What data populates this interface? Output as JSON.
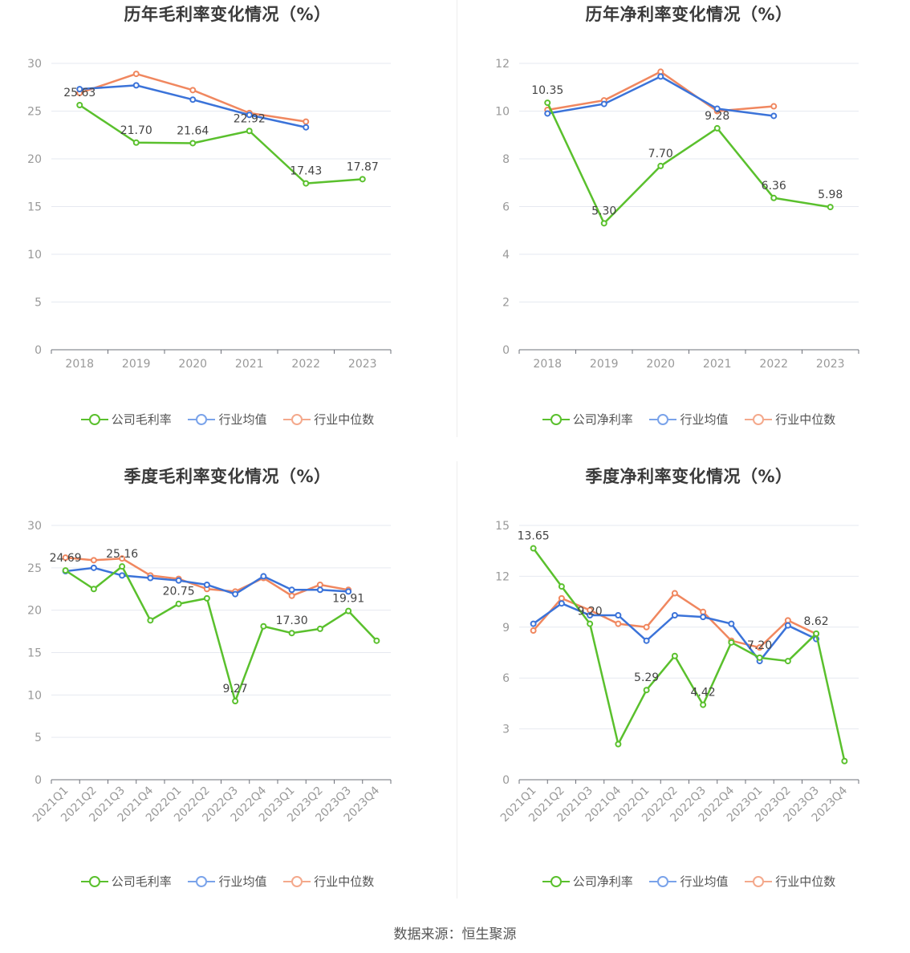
{
  "source": "数据来源：恒生聚源",
  "colors": {
    "company": "#5ac02d",
    "avg": "#3b73d9",
    "median": "#f0875f"
  },
  "charts": [
    {
      "id": "annual-gross",
      "title": "历年毛利率变化情况（%）",
      "legend": [
        "公司毛利率",
        "行业均值",
        "行业中位数"
      ]
    },
    {
      "id": "annual-net",
      "title": "历年净利率变化情况（%）",
      "legend": [
        "公司净利率",
        "行业均值",
        "行业中位数"
      ]
    },
    {
      "id": "quarter-gross",
      "title": "季度毛利率变化情况（%）",
      "legend": [
        "公司毛利率",
        "行业均值",
        "行业中位数"
      ]
    },
    {
      "id": "quarter-net",
      "title": "季度净利率变化情况（%）",
      "legend": [
        "公司净利率",
        "行业均值",
        "行业中位数"
      ]
    }
  ],
  "chart_data": [
    {
      "type": "line",
      "title": "历年毛利率变化情况（%）",
      "categories": [
        "2018",
        "2019",
        "2020",
        "2021",
        "2022",
        "2023"
      ],
      "ylim": [
        0,
        30
      ],
      "yticks": [
        0,
        5,
        10,
        15,
        20,
        25,
        30
      ],
      "grid": true,
      "legend_position": "bottom",
      "series": [
        {
          "name": "公司毛利率",
          "values": [
            25.63,
            21.7,
            21.64,
            22.92,
            17.43,
            17.87
          ],
          "labels": [
            "25.63",
            "21.70",
            "21.64",
            "22.92",
            "17.43",
            "17.87"
          ]
        },
        {
          "name": "行业均值",
          "values": [
            27.3,
            27.7,
            26.2,
            24.6,
            23.3,
            null
          ]
        },
        {
          "name": "行业中位数",
          "values": [
            26.9,
            28.9,
            27.2,
            24.8,
            23.9,
            null
          ]
        }
      ]
    },
    {
      "type": "line",
      "title": "历年净利率变化情况（%）",
      "categories": [
        "2018",
        "2019",
        "2020",
        "2021",
        "2022",
        "2023"
      ],
      "ylim": [
        0,
        12
      ],
      "yticks": [
        0,
        2,
        4,
        6,
        8,
        10,
        12
      ],
      "grid": true,
      "legend_position": "bottom",
      "series": [
        {
          "name": "公司净利率",
          "values": [
            10.35,
            5.3,
            7.7,
            9.28,
            6.36,
            5.98
          ],
          "labels": [
            "10.35",
            "5.30",
            "7.70",
            "9.28",
            "6.36",
            "5.98"
          ]
        },
        {
          "name": "行业均值",
          "values": [
            9.9,
            10.3,
            11.45,
            10.1,
            9.8,
            null
          ]
        },
        {
          "name": "行业中位数",
          "values": [
            10.05,
            10.45,
            11.65,
            10.0,
            10.2,
            null
          ]
        }
      ]
    },
    {
      "type": "line",
      "title": "季度毛利率变化情况（%）",
      "categories": [
        "2021Q1",
        "2021Q2",
        "2021Q3",
        "2021Q4",
        "2022Q1",
        "2022Q2",
        "2022Q3",
        "2022Q4",
        "2023Q1",
        "2023Q2",
        "2023Q3",
        "2023Q4"
      ],
      "ylim": [
        0,
        30
      ],
      "yticks": [
        0,
        5,
        10,
        15,
        20,
        25,
        30
      ],
      "grid": true,
      "legend_position": "bottom",
      "series": [
        {
          "name": "公司毛利率",
          "values": [
            24.69,
            22.5,
            25.16,
            18.8,
            20.75,
            21.4,
            9.27,
            18.1,
            17.3,
            17.8,
            19.91,
            16.4
          ],
          "labels": [
            "24.69",
            "",
            "25.16",
            "",
            "20.75",
            "",
            "9.27",
            "",
            "17.30",
            "",
            "19.91",
            ""
          ]
        },
        {
          "name": "行业均值",
          "values": [
            24.6,
            25.0,
            24.1,
            23.8,
            23.5,
            23.0,
            21.9,
            24.0,
            22.4,
            22.4,
            22.2,
            null
          ]
        },
        {
          "name": "行业中位数",
          "values": [
            26.2,
            25.9,
            26.1,
            24.1,
            23.7,
            22.5,
            22.2,
            23.8,
            21.7,
            23.0,
            22.4,
            null
          ]
        }
      ]
    },
    {
      "type": "line",
      "title": "季度净利率变化情况（%）",
      "categories": [
        "2021Q1",
        "2021Q2",
        "2021Q3",
        "2021Q4",
        "2022Q1",
        "2022Q2",
        "2022Q3",
        "2022Q4",
        "2023Q1",
        "2023Q2",
        "2023Q3",
        "2023Q4"
      ],
      "ylim": [
        0,
        15
      ],
      "yticks": [
        0,
        3,
        6,
        9,
        12,
        15
      ],
      "grid": true,
      "legend_position": "bottom",
      "series": [
        {
          "name": "公司净利率",
          "values": [
            13.65,
            11.4,
            9.2,
            2.1,
            5.29,
            7.3,
            4.42,
            8.1,
            7.2,
            7.0,
            8.62,
            1.1
          ],
          "labels": [
            "13.65",
            "",
            "9.20",
            "",
            "5.29",
            "",
            "4.42",
            "",
            "7.20",
            "",
            "8.62",
            ""
          ]
        },
        {
          "name": "行业均值",
          "values": [
            9.2,
            10.4,
            9.7,
            9.7,
            8.2,
            9.7,
            9.6,
            9.2,
            7.0,
            9.1,
            8.3,
            null
          ]
        },
        {
          "name": "行业中位数",
          "values": [
            8.8,
            10.7,
            10.0,
            9.2,
            9.0,
            11.0,
            9.9,
            8.2,
            7.8,
            9.4,
            8.6,
            null
          ]
        }
      ]
    }
  ]
}
